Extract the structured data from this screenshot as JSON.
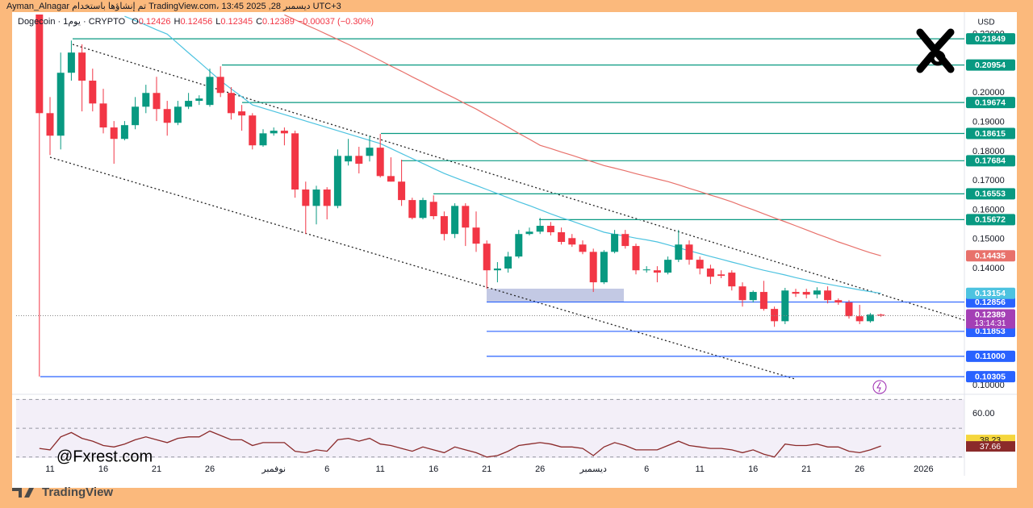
{
  "chart_data": {
    "type": "candlestick",
    "attribution": "Ayman_Alnagar تم إنشاؤها باستخدام TradingView.com، ديسمبر 28, 2025 13:45 UTC+3",
    "header": {
      "symbol": "Dogecoin · 1يوم · CRYPTO",
      "ohlc_letters": [
        "O",
        "H",
        "L",
        "C"
      ],
      "change": "−0.00037 (−0.30%)"
    },
    "currency": "USD",
    "watermark": "@Fxrest.com",
    "footer": "TradingView",
    "categories": [
      null,
      "11",
      null,
      null,
      null,
      null,
      "16",
      null,
      null,
      null,
      null,
      "21",
      null,
      null,
      null,
      null,
      "26",
      null,
      null,
      null,
      null,
      null,
      "نوفمبر",
      null,
      null,
      null,
      null,
      "6",
      null,
      null,
      null,
      null,
      "11",
      null,
      null,
      null,
      null,
      "16",
      null,
      null,
      null,
      null,
      "21",
      null,
      null,
      null,
      null,
      "26",
      null,
      null,
      null,
      null,
      "ديسمبر",
      null,
      null,
      null,
      null,
      "6",
      null,
      null,
      null,
      null,
      "11",
      null,
      null,
      null,
      null,
      "16",
      null,
      null,
      null,
      null,
      "21",
      null,
      null,
      null,
      null,
      "26",
      null,
      null,
      null,
      null,
      null,
      "2026"
    ],
    "open": [
      0.25,
      0.1931,
      0.1854,
      0.2069,
      0.2138,
      0.2042,
      0.1964,
      0.1882,
      0.1843,
      0.189,
      0.1953,
      0.2,
      0.1945,
      0.1898,
      0.1953,
      0.1973,
      0.1959,
      0.2055,
      0.2,
      0.1937,
      0.1923,
      0.1821,
      0.1862,
      0.1871,
      0.1862,
      0.167,
      0.1614,
      0.167,
      0.1614,
      0.1766,
      0.1785,
      0.1785,
      0.1813,
      0.1716,
      0.1697,
      0.1634,
      0.1573,
      0.1628,
      0.1579,
      0.1518,
      0.1614,
      0.154,
      0.1485,
      0.1394,
      0.14,
      0.1441,
      0.1518,
      0.1526,
      0.1546,
      0.1524,
      0.1504,
      0.1482,
      0.1457,
      0.1353,
      0.1457,
      0.1518,
      0.1477,
      0.1394,
      0.1394,
      0.1386,
      0.143,
      0.1482,
      0.143,
      0.14,
      0.138,
      0.1386,
      0.1339,
      0.1292,
      0.132,
      0.1262,
      0.122,
      0.132,
      0.132,
      0.1311,
      0.1325,
      0.1292,
      0.1284,
      0.1237,
      0.122,
      0.12426,
      null,
      null,
      null,
      null
    ],
    "high": [
      0.252,
      0.1986,
      0.2138,
      0.2179,
      0.2166,
      0.2083,
      0.2014,
      0.1904,
      0.1904,
      0.1986,
      0.2028,
      0.2055,
      0.1973,
      0.1973,
      0.2,
      0.1992,
      0.2083,
      0.2091,
      0.202,
      0.1959,
      0.1931,
      0.1876,
      0.1882,
      0.1882,
      0.1871,
      0.1697,
      0.1683,
      0.1678,
      0.1807,
      0.1843,
      0.1816,
      0.1854,
      0.186,
      0.178,
      0.1772,
      0.1642,
      0.1642,
      0.165,
      0.1595,
      0.1623,
      0.1623,
      0.1595,
      0.1496,
      0.1422,
      0.1457,
      0.1532,
      0.154,
      0.1573,
      0.1559,
      0.154,
      0.1518,
      0.1496,
      0.1468,
      0.1463,
      0.1532,
      0.1532,
      0.1485,
      0.1408,
      0.1408,
      0.1441,
      0.1532,
      0.1496,
      0.1441,
      0.1413,
      0.1394,
      0.1394,
      0.1353,
      0.1325,
      0.1358,
      0.127,
      0.1334,
      0.1331,
      0.1331,
      0.1336,
      0.1339,
      0.1298,
      0.1292,
      0.1276,
      0.1248,
      0.12456,
      null,
      null,
      null,
      null
    ],
    "low": [
      0.1031,
      0.1788,
      0.1807,
      0.2042,
      0.1937,
      0.1937,
      0.1862,
      0.1758,
      0.1838,
      0.1876,
      0.1931,
      0.1904,
      0.1854,
      0.189,
      0.1945,
      0.1959,
      0.1953,
      0.1986,
      0.1909,
      0.1871,
      0.1807,
      0.1816,
      0.1854,
      0.1821,
      0.1642,
      0.1518,
      0.1551,
      0.1568,
      0.1606,
      0.1752,
      0.1725,
      0.1766,
      0.1711,
      0.1697,
      0.1614,
      0.1568,
      0.1568,
      0.1568,
      0.1496,
      0.1504,
      0.1477,
      0.1457,
      0.1331,
      0.1353,
      0.1386,
      0.1435,
      0.1513,
      0.1518,
      0.1513,
      0.1482,
      0.1474,
      0.1449,
      0.132,
      0.1347,
      0.1452,
      0.1468,
      0.138,
      0.1386,
      0.1353,
      0.138,
      0.1422,
      0.1413,
      0.138,
      0.1347,
      0.1367,
      0.1325,
      0.127,
      0.1284,
      0.1256,
      0.1201,
      0.121,
      0.1303,
      0.1298,
      0.1298,
      0.1281,
      0.1276,
      0.1229,
      0.121,
      0.1215,
      0.12345,
      null,
      null,
      null,
      null
    ],
    "close": [
      0.1931,
      0.1854,
      0.2069,
      0.2138,
      0.2042,
      0.1964,
      0.1882,
      0.1843,
      0.189,
      0.1953,
      0.2,
      0.1945,
      0.1898,
      0.1953,
      0.1973,
      0.1981,
      0.2055,
      0.2,
      0.1931,
      0.1923,
      0.1821,
      0.1862,
      0.1871,
      0.1862,
      0.167,
      0.1614,
      0.167,
      0.1614,
      0.1785,
      0.1785,
      0.1758,
      0.1813,
      0.1716,
      0.1697,
      0.1634,
      0.1573,
      0.1634,
      0.1579,
      0.1518,
      0.1614,
      0.154,
      0.1485,
      0.1394,
      0.14,
      0.1441,
      0.1518,
      0.1526,
      0.1546,
      0.1524,
      0.1491,
      0.1482,
      0.1457,
      0.1353,
      0.1457,
      0.1518,
      0.1477,
      0.1394,
      0.1397,
      0.1386,
      0.143,
      0.1482,
      0.143,
      0.14,
      0.1372,
      0.1375,
      0.1339,
      0.1292,
      0.132,
      0.1262,
      0.122,
      0.1325,
      0.1314,
      0.1311,
      0.1325,
      0.1292,
      0.1284,
      0.1237,
      0.122,
      0.12426,
      0.12389,
      null,
      null,
      null,
      null
    ],
    "up_color": "#089981",
    "down_color": "#f23645",
    "moving_averages": [
      {
        "color": "#4dc3e0",
        "values": [
          null,
          null,
          null,
          null,
          null,
          null,
          null,
          null,
          0.2262,
          0.2247,
          0.2232,
          0.2216,
          0.2201,
          0.2169,
          0.2137,
          0.2106,
          0.2074,
          0.2042,
          0.2014,
          0.1987,
          0.1959,
          0.1948,
          0.1937,
          0.1926,
          0.1915,
          0.1904,
          0.1893,
          0.1882,
          0.1871,
          0.186,
          0.1849,
          0.1838,
          0.1827,
          0.181,
          0.1793,
          0.1776,
          0.1759,
          0.1742,
          0.1725,
          0.1711,
          0.1697,
          0.1684,
          0.167,
          0.1656,
          0.1642,
          0.1628,
          0.1615,
          0.1601,
          0.1587,
          0.1574,
          0.1562,
          0.1549,
          0.1537,
          0.1524,
          0.1517,
          0.1511,
          0.1504,
          0.1498,
          0.1491,
          0.1481,
          0.1471,
          0.1461,
          0.1451,
          0.1441,
          0.1432,
          0.1422,
          0.1413,
          0.1403,
          0.1394,
          0.1386,
          0.1378,
          0.1369,
          0.1361,
          0.1353,
          0.1347,
          0.134,
          0.1334,
          0.1327,
          0.1321,
          0.13154,
          null,
          null,
          null,
          null
        ]
      },
      {
        "color": "#e8716b",
        "values": [
          null,
          null,
          null,
          null,
          null,
          null,
          null,
          null,
          null,
          null,
          null,
          null,
          null,
          null,
          null,
          null,
          null,
          null,
          null,
          null,
          null,
          null,
          null,
          0.2267,
          0.225,
          0.2233,
          0.2217,
          0.22,
          0.2183,
          0.2166,
          0.2148,
          0.2129,
          0.2111,
          0.2092,
          0.2074,
          0.2055,
          0.2037,
          0.2018,
          0.2,
          0.1982,
          0.1963,
          0.1945,
          0.1924,
          0.1904,
          0.1883,
          0.1862,
          0.1842,
          0.1821,
          0.181,
          0.1798,
          0.1787,
          0.1775,
          0.1764,
          0.1752,
          0.1743,
          0.1734,
          0.1724,
          0.1715,
          0.1706,
          0.1697,
          0.1686,
          0.1674,
          0.1663,
          0.1651,
          0.164,
          0.1628,
          0.1614,
          0.1601,
          0.1587,
          0.1573,
          0.156,
          0.1546,
          0.1532,
          0.1518,
          0.1505,
          0.1491,
          0.1479,
          0.1466,
          0.1454,
          0.14435,
          null,
          null,
          null,
          null
        ]
      }
    ],
    "levels": [
      {
        "value": 0.21849,
        "color": "#089981"
      },
      {
        "value": 0.20954,
        "color": "#089981"
      },
      {
        "value": 0.19674,
        "color": "#089981"
      },
      {
        "value": 0.18615,
        "color": "#089981"
      },
      {
        "value": 0.17684,
        "color": "#089981"
      },
      {
        "value": 0.16553,
        "color": "#089981"
      },
      {
        "value": 0.15672,
        "color": "#089981"
      },
      {
        "value": 0.12856,
        "color": "#2962ff"
      },
      {
        "value": 0.11853,
        "color": "#2962ff"
      },
      {
        "value": 0.11,
        "label": "0.11000",
        "color": "#2962ff"
      },
      {
        "value": 0.10305,
        "color": "#2962ff"
      }
    ],
    "last_price_color": "#a43fb5",
    "countdown": "13:14:31",
    "ylim": [
      0.0973,
      0.2268
    ],
    "yticks": [
      {
        "value": 0.22,
        "label": "0.22000"
      },
      {
        "value": 0.2,
        "label": "0.20000"
      },
      {
        "value": 0.19,
        "label": "0.19000"
      },
      {
        "value": 0.18,
        "label": "0.18000"
      },
      {
        "value": 0.17,
        "label": "0.17000"
      },
      {
        "value": 0.16,
        "label": "0.16000"
      },
      {
        "value": 0.15,
        "label": "0.15000"
      },
      {
        "value": 0.14,
        "label": "0.14000"
      },
      {
        "value": 0.1,
        "label": "0.10000"
      }
    ],
    "rsi": {
      "color": "#8b2a2a",
      "values": [
        36,
        35,
        44,
        47,
        43,
        41,
        38,
        37,
        39,
        42,
        44,
        42,
        40,
        43,
        44,
        44,
        48,
        45,
        42,
        42,
        38,
        40,
        40,
        40,
        34,
        33,
        35,
        34,
        42,
        43,
        41,
        43,
        39,
        38,
        36,
        34,
        37,
        35,
        33,
        37,
        35,
        33,
        30,
        31,
        34,
        38,
        39,
        40,
        39,
        37,
        37,
        36,
        31,
        37,
        40,
        38,
        35,
        35,
        35,
        38,
        41,
        38,
        37,
        36,
        36,
        35,
        33,
        35,
        32,
        30,
        39,
        38,
        38,
        39,
        37,
        37,
        34,
        33,
        35,
        37.66,
        null,
        null,
        null,
        null
      ],
      "ma_last": {
        "value": 38.23,
        "color": "#f5d63d"
      },
      "ylim": [
        17,
        73
      ],
      "yticks": [
        {
          "value": 60,
          "label": "60.00"
        }
      ],
      "guide_lines": [
        70,
        50,
        30
      ]
    }
  }
}
